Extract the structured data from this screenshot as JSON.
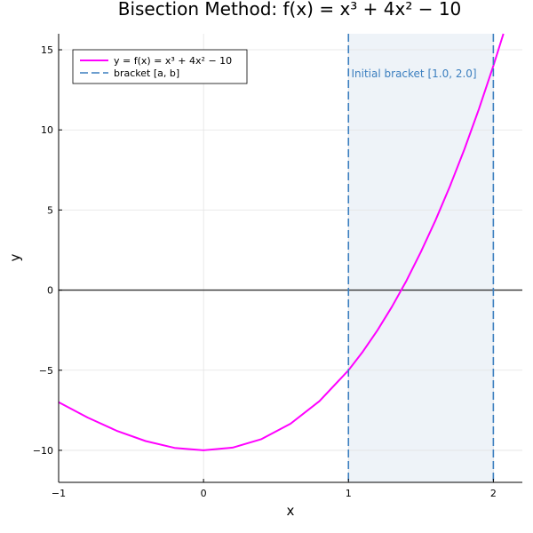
{
  "chart_data": {
    "type": "line",
    "title": "Bisection Method: f(x) = x³ + 4x² − 10",
    "xlabel": "x",
    "ylabel": "y",
    "xlim": [
      -1,
      2.2
    ],
    "ylim": [
      -12,
      16
    ],
    "x_ticks": [
      -1,
      0,
      1,
      2
    ],
    "y_ticks": [
      -10,
      -5,
      0,
      5,
      10,
      15
    ],
    "x_tick_labels": [
      "−1",
      "0",
      "1",
      "2"
    ],
    "y_tick_labels": [
      "−10",
      "−5",
      "0",
      "5",
      "10",
      "15"
    ],
    "grid": true,
    "legend_position": "top-left",
    "series": [
      {
        "name": "y = f(x) = x³ + 4x² − 10",
        "color": "#ff00ff",
        "x": [
          -1.0,
          -0.8,
          -0.6,
          -0.4,
          -0.2,
          0.0,
          0.2,
          0.4,
          0.6,
          0.8,
          1.0,
          1.1,
          1.2,
          1.3,
          1.4,
          1.5,
          1.6,
          1.7,
          1.8,
          1.9,
          2.0,
          2.08
        ],
        "y": [
          -7.0,
          -7.95,
          -8.78,
          -9.42,
          -9.85,
          -10.0,
          -9.83,
          -9.3,
          -8.34,
          -6.93,
          -5.0,
          -3.83,
          -2.51,
          -1.04,
          0.58,
          2.38,
          4.34,
          6.47,
          8.79,
          11.3,
          14.0,
          16.3
        ]
      }
    ],
    "bracket": {
      "name": "bracket [a, b]",
      "a": 1.0,
      "b": 2.0,
      "color": "#3c7fbf",
      "fill": "#eef3f8"
    },
    "annotation": {
      "text": "Initial bracket [1.0, 2.0]",
      "color": "#3c7fbf",
      "x": 1.02,
      "y": 13.5
    },
    "reference_line": {
      "y": 0,
      "color": "#333333"
    }
  }
}
